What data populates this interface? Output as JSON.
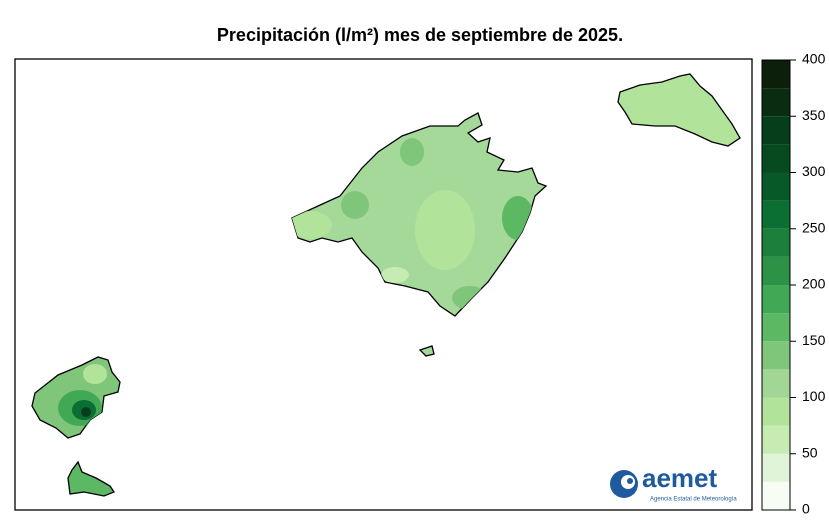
{
  "title": "Precipitación (l/m²) mes de septiembre de 2025.",
  "legend": {
    "range": [
      0,
      400
    ],
    "ticks": [
      0,
      50,
      100,
      150,
      200,
      250,
      300,
      350,
      400
    ],
    "colors": [
      "#f7fcf5",
      "#e0f5d8",
      "#c7ecb3",
      "#b2e39a",
      "#a1d697",
      "#7fc67a",
      "#5db863",
      "#41a956",
      "#2e9148",
      "#1d7f3c",
      "#0b6e32",
      "#075a28",
      "#064a20",
      "#063d1b",
      "#0a2d12",
      "#0b1f0b"
    ]
  },
  "logo": {
    "name": "aemet",
    "subtitle": "Agencia Estatal de Meteorología"
  }
}
